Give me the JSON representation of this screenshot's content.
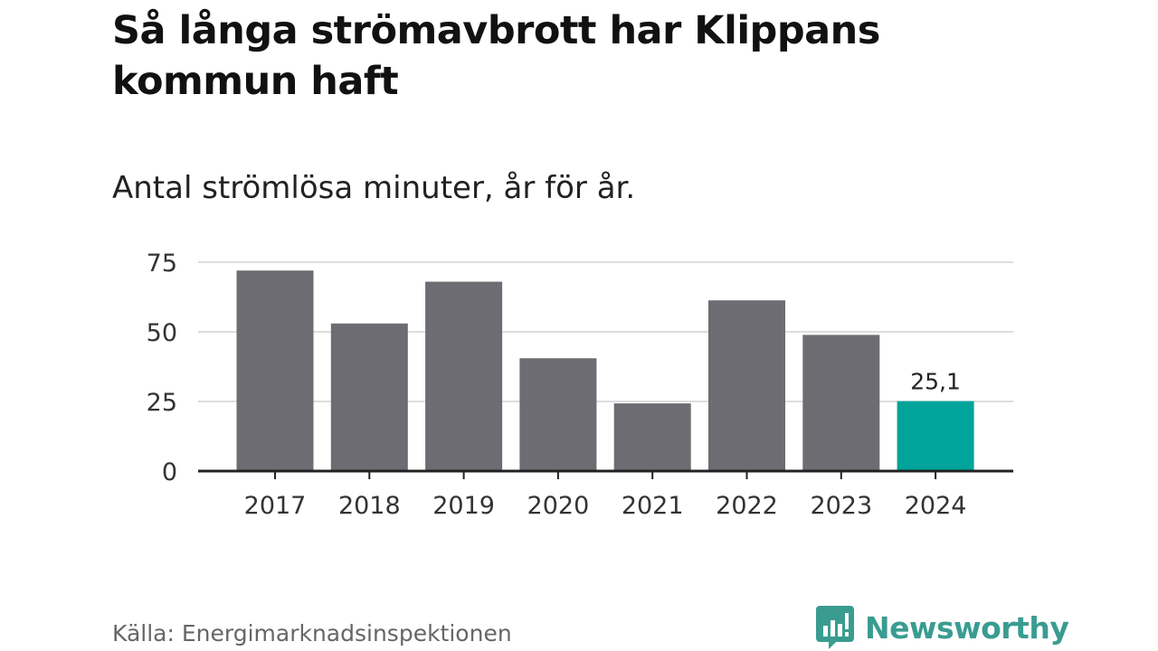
{
  "title": "Så långa strömavbrott har Klippans kommun haft",
  "subtitle": "Antal strömlösa minuter, år för år.",
  "source": "Källa: Energimarknadsinspektionen",
  "brand": {
    "name": "Newsworthy",
    "icon": "newsworthy-logo-icon",
    "color": "#3a9c91"
  },
  "colors": {
    "bar": "#6d6c72",
    "highlight": "#00a49a",
    "grid": "#dddddd",
    "axis": "#222222"
  },
  "chart_data": {
    "type": "bar",
    "title": "Så långa strömavbrott har Klippans kommun haft",
    "subtitle": "Antal strömlösa minuter, år för år.",
    "xlabel": "",
    "ylabel": "",
    "categories": [
      "2017",
      "2018",
      "2019",
      "2020",
      "2021",
      "2022",
      "2023",
      "2024"
    ],
    "values": [
      72,
      53,
      68,
      40.5,
      24.3,
      61.3,
      48.9,
      25.1
    ],
    "highlight_index": 7,
    "data_labels": [
      {
        "index": 7,
        "text": "25,1"
      }
    ],
    "yticks": [
      0,
      25,
      50,
      75
    ],
    "ytick_labels": [
      "0",
      "25",
      "50",
      "75"
    ],
    "ylim": [
      0,
      75
    ],
    "grid": true,
    "legend": "none"
  }
}
